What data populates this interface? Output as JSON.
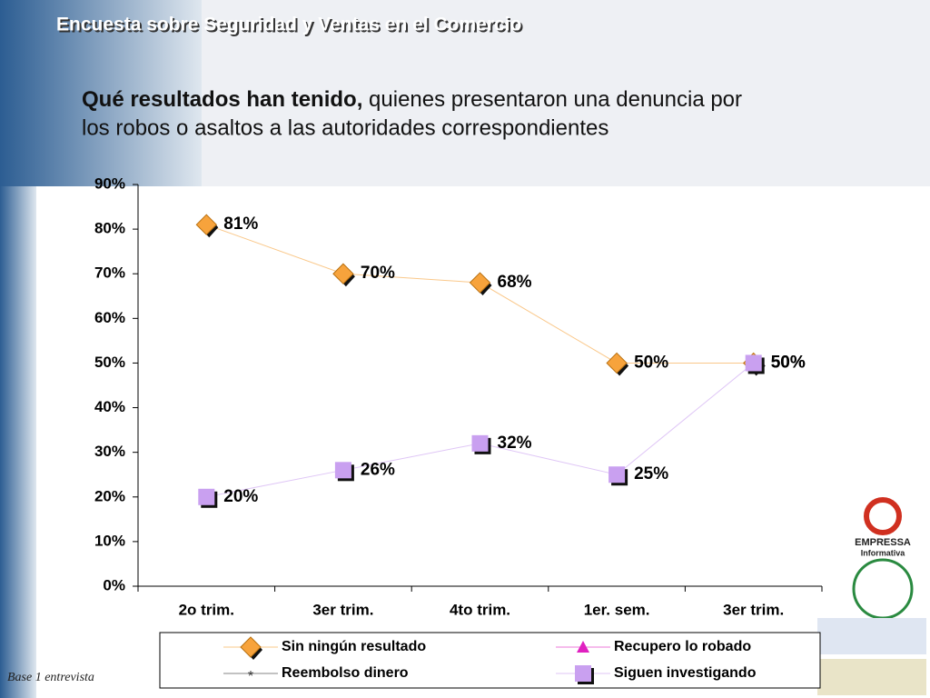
{
  "title": "Encuesta sobre Seguridad y Ventas en el Comercio",
  "subtitle_bold": "Qué resultados han tenido,",
  "subtitle_rest": " quienes presentaron una denuncia por",
  "subtitle_line2": "los robos o asaltos a las autoridades correspondientes",
  "footnote": "Base 1 entrevista",
  "logo_text": [
    "EMPRESSA",
    "Informativa"
  ],
  "chart_data": {
    "type": "line",
    "categories": [
      "2o trim.",
      "3er trim.",
      "4to trim.",
      "1er. sem.",
      "3er trim."
    ],
    "series": [
      {
        "name": "Sin ningún resultado",
        "color": "#f7a33c",
        "marker": "diamond",
        "values": [
          81,
          70,
          68,
          50,
          50
        ],
        "value_labels": [
          "81%",
          "70%",
          "68%",
          "50%",
          "50%"
        ]
      },
      {
        "name": "Recupero lo robado",
        "color": "#e020c0",
        "marker": "triangle",
        "values": [
          null,
          null,
          null,
          null,
          null
        ]
      },
      {
        "name": "Reembolso dinero",
        "color": "#333333",
        "marker": "star",
        "values": [
          null,
          null,
          null,
          null,
          null
        ]
      },
      {
        "name": "Siguen investigando",
        "color": "#c9a0f0",
        "marker": "square",
        "values": [
          20,
          26,
          32,
          25,
          50
        ],
        "value_labels": [
          "20%",
          "26%",
          "32%",
          "25%",
          "50%"
        ]
      }
    ],
    "ylim": [
      0,
      90
    ],
    "yticks": [
      {
        "value": 0,
        "label": "0%"
      },
      {
        "value": 10,
        "label": "10%"
      },
      {
        "value": 20,
        "label": "20%"
      },
      {
        "value": 30,
        "label": "30%"
      },
      {
        "value": 40,
        "label": "40%"
      },
      {
        "value": 50,
        "label": "50%"
      },
      {
        "value": 60,
        "label": "60%"
      },
      {
        "value": 70,
        "label": "70%"
      },
      {
        "value": 80,
        "label": "80%"
      },
      {
        "value": 90,
        "label": "90%"
      }
    ],
    "legend": "bottom"
  }
}
